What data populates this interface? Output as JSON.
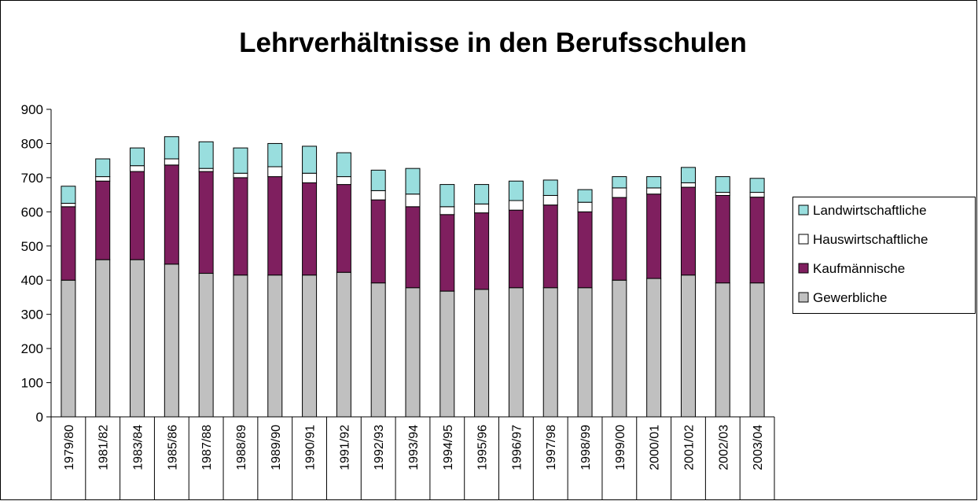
{
  "chart_data": {
    "type": "stacked_bar",
    "title": "Lehrverhältnisse in den Berufsschulen",
    "categories": [
      "1979/80",
      "1981/82",
      "1983/84",
      "1985/86",
      "1987/88",
      "1988/89",
      "1989/90",
      "1990/91",
      "1991/92",
      "1992/93",
      "1993/94",
      "1994/95",
      "1995/96",
      "1996/97",
      "1997/98",
      "1998/99",
      "1999/00",
      "2000/01",
      "2001/02",
      "2002/03",
      "2003/04"
    ],
    "series": [
      {
        "name": "Gewerbliche",
        "color": "#c0c0c0",
        "values": [
          400,
          460,
          460,
          447,
          420,
          415,
          415,
          415,
          423,
          392,
          378,
          368,
          373,
          378,
          378,
          378,
          400,
          405,
          415,
          392,
          392
        ]
      },
      {
        "name": "Kaufmännische",
        "color": "#7f1f5f",
        "values": [
          215,
          230,
          258,
          290,
          298,
          285,
          288,
          270,
          257,
          243,
          237,
          224,
          224,
          227,
          242,
          222,
          242,
          247,
          257,
          256,
          251
        ]
      },
      {
        "name": "Hauswirtschaftliche",
        "color": "#ffffff",
        "values": [
          10,
          13,
          17,
          18,
          9,
          13,
          29,
          28,
          23,
          27,
          37,
          23,
          26,
          28,
          28,
          28,
          28,
          18,
          13,
          9,
          14
        ]
      },
      {
        "name": "Landwirtschaftliche",
        "color": "#99dede",
        "values": [
          50,
          52,
          52,
          65,
          78,
          74,
          68,
          79,
          70,
          60,
          75,
          65,
          57,
          57,
          45,
          37,
          33,
          33,
          45,
          46,
          41
        ]
      }
    ],
    "ylim": [
      0,
      900
    ],
    "yticks": [
      0,
      100,
      200,
      300,
      400,
      500,
      600,
      700,
      800,
      900
    ],
    "legend": "right"
  }
}
